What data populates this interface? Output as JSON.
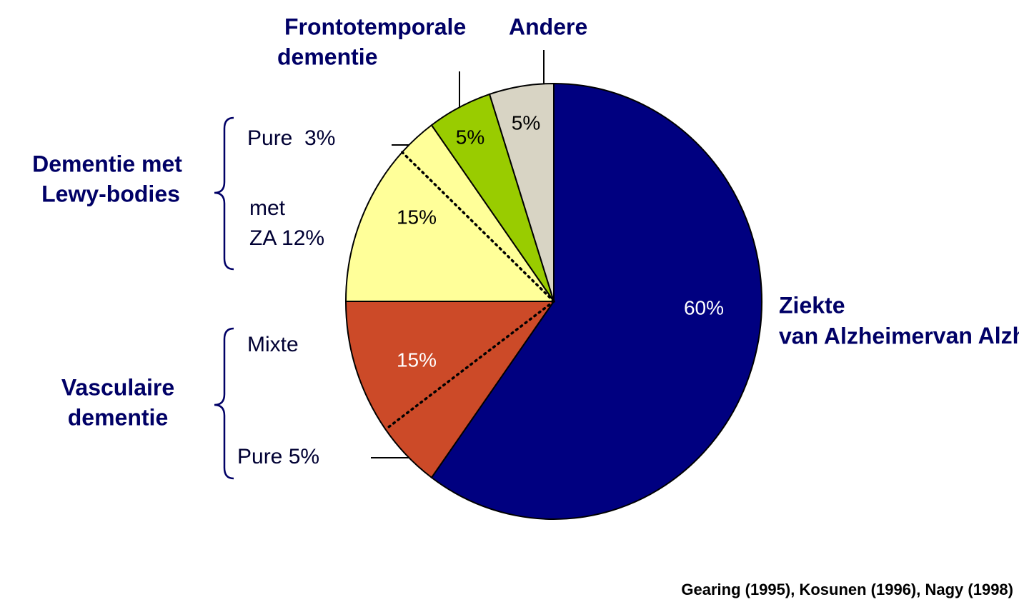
{
  "chart_data": {
    "type": "pie",
    "categories": [
      [
        "Ziekte",
        "van Alzheimer"
      ],
      [
        "Vasculaire",
        "dementie"
      ],
      [
        "Dementie met",
        "Lewy-bodies"
      ],
      [
        "Frontotemporale",
        "dementie"
      ],
      [
        "Andere"
      ]
    ],
    "category_note": "(ZA)",
    "values": [
      60,
      15,
      15,
      5,
      5
    ],
    "value_labels": [
      "60%",
      "15%",
      "15%",
      "5%",
      "5%"
    ],
    "colors": [
      "#000080",
      "#cc4a28",
      "#ffff99",
      "#99cc00",
      "#d8d4c4"
    ],
    "subdivisions": [
      {
        "slice": 1,
        "parts": [
          {
            "label": [
              "Pure 5%"
            ],
            "value": 5
          },
          {
            "label": [
              "Mixte"
            ],
            "value": 10
          }
        ]
      },
      {
        "slice": 2,
        "parts": [
          {
            "label": [
              "met",
              "ZA 12%"
            ],
            "value": 12
          },
          {
            "label": [
              "Pure  3%"
            ],
            "value": 3
          }
        ]
      }
    ],
    "source": "Gearing (1995), Kosunen (1996), Nagy (1998)"
  }
}
